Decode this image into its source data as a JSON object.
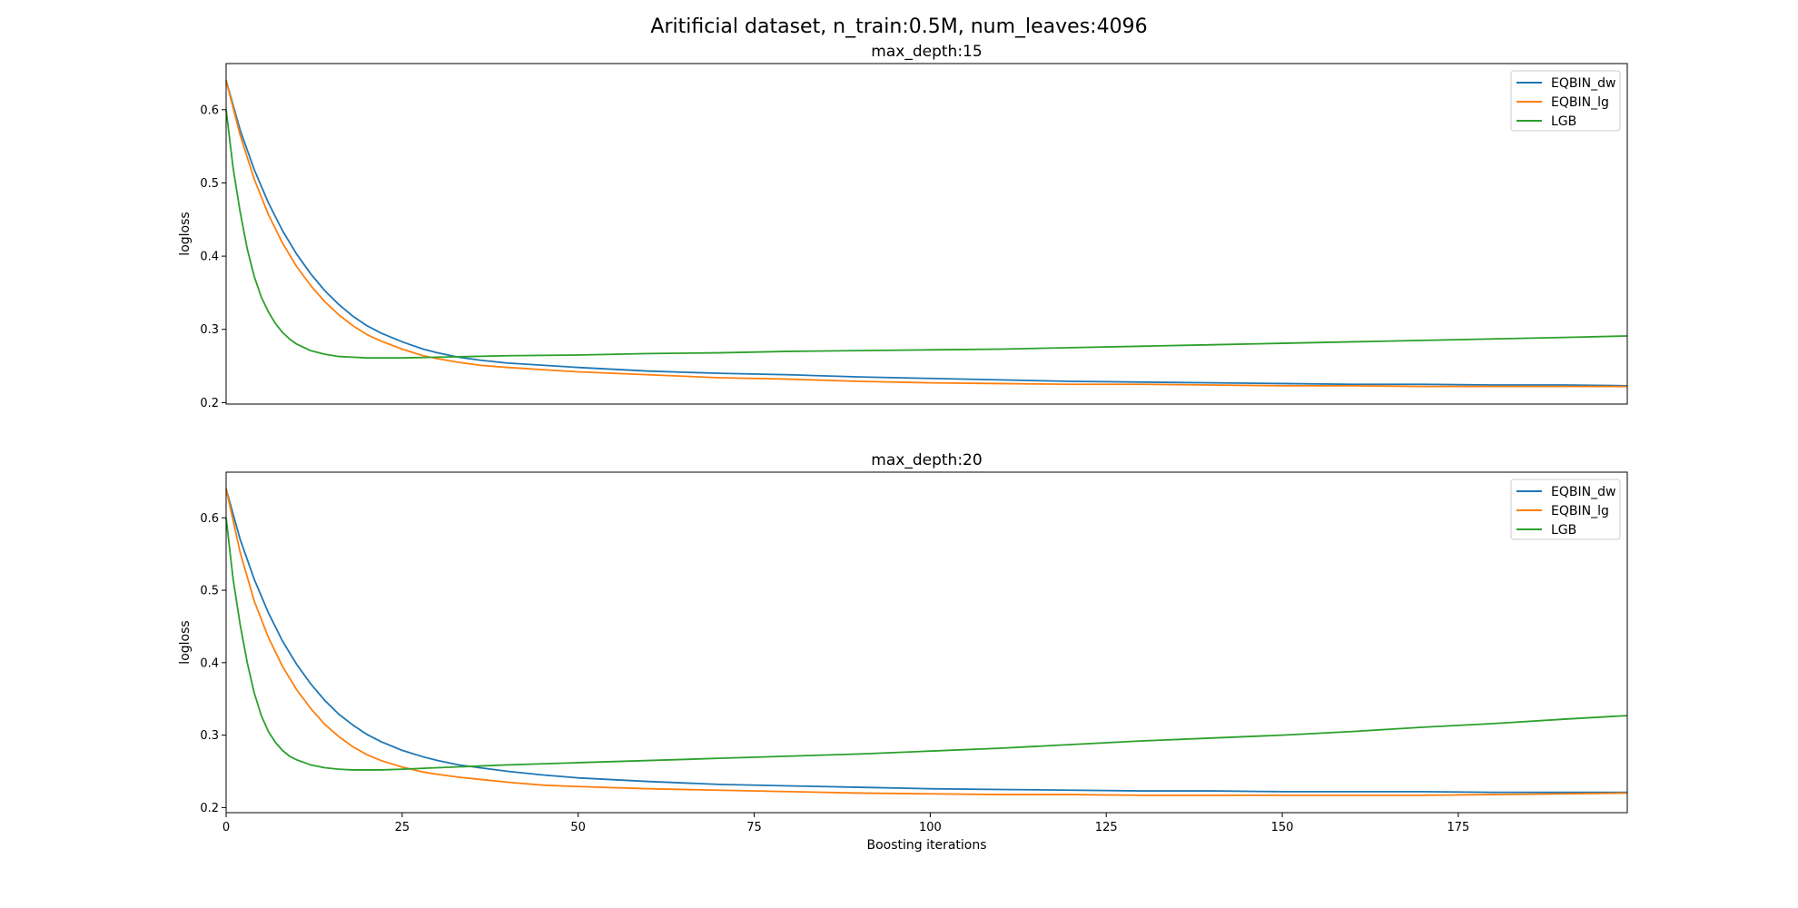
{
  "figure": {
    "suptitle": "Aritificial dataset, n_train:0.5M, num_leaves:4096"
  },
  "chart_data": [
    {
      "type": "line",
      "title": "max_depth:15",
      "xlabel": "",
      "ylabel": "logloss",
      "xlim": [
        0,
        199
      ],
      "ylim": [
        0.198,
        0.663
      ],
      "xticks": [],
      "yticks": [
        0.2,
        0.3,
        0.4,
        0.5,
        0.6
      ],
      "ytick_labels": [
        "0.2",
        "0.3",
        "0.4",
        "0.5",
        "0.6"
      ],
      "grid": false,
      "legend": "top-right",
      "series": [
        {
          "name": "EQBIN_dw",
          "color": "#1f77b4",
          "x": [
            0,
            2,
            4,
            6,
            8,
            10,
            12,
            14,
            16,
            18,
            20,
            22,
            25,
            28,
            30,
            33,
            36,
            40,
            45,
            50,
            60,
            70,
            80,
            90,
            100,
            110,
            120,
            130,
            140,
            150,
            160,
            170,
            180,
            190,
            199
          ],
          "y": [
            0.64,
            0.572,
            0.518,
            0.473,
            0.435,
            0.403,
            0.376,
            0.353,
            0.334,
            0.318,
            0.305,
            0.295,
            0.283,
            0.273,
            0.268,
            0.262,
            0.258,
            0.254,
            0.251,
            0.248,
            0.243,
            0.24,
            0.238,
            0.235,
            0.233,
            0.231,
            0.229,
            0.228,
            0.227,
            0.226,
            0.225,
            0.225,
            0.224,
            0.224,
            0.223
          ]
        },
        {
          "name": "EQBIN_lg",
          "color": "#ff7f0e",
          "x": [
            0,
            2,
            4,
            6,
            8,
            10,
            12,
            14,
            16,
            18,
            20,
            22,
            25,
            28,
            30,
            33,
            36,
            40,
            45,
            50,
            60,
            70,
            80,
            90,
            100,
            110,
            120,
            130,
            140,
            150,
            160,
            170,
            180,
            190,
            199
          ],
          "y": [
            0.64,
            0.565,
            0.505,
            0.457,
            0.418,
            0.386,
            0.36,
            0.338,
            0.32,
            0.305,
            0.293,
            0.284,
            0.273,
            0.264,
            0.26,
            0.255,
            0.251,
            0.248,
            0.245,
            0.242,
            0.238,
            0.234,
            0.232,
            0.229,
            0.227,
            0.226,
            0.225,
            0.225,
            0.224,
            0.223,
            0.223,
            0.222,
            0.222,
            0.222,
            0.222
          ]
        },
        {
          "name": "LGB",
          "color": "#2ca02c",
          "x": [
            0,
            1,
            2,
            3,
            4,
            5,
            6,
            7,
            8,
            9,
            10,
            12,
            14,
            16,
            18,
            20,
            22,
            25,
            30,
            35,
            40,
            50,
            60,
            70,
            80,
            90,
            100,
            110,
            120,
            130,
            140,
            150,
            160,
            170,
            180,
            190,
            199
          ],
          "y": [
            0.6,
            0.52,
            0.46,
            0.41,
            0.372,
            0.344,
            0.324,
            0.308,
            0.296,
            0.287,
            0.28,
            0.271,
            0.266,
            0.263,
            0.262,
            0.261,
            0.261,
            0.261,
            0.262,
            0.263,
            0.264,
            0.265,
            0.267,
            0.268,
            0.27,
            0.271,
            0.272,
            0.273,
            0.275,
            0.277,
            0.279,
            0.281,
            0.283,
            0.285,
            0.287,
            0.289,
            0.291
          ]
        }
      ]
    },
    {
      "type": "line",
      "title": "max_depth:20",
      "xlabel": "Boosting iterations",
      "ylabel": "logloss",
      "xlim": [
        0,
        199
      ],
      "ylim": [
        0.193,
        0.663
      ],
      "xticks": [
        0,
        25,
        50,
        75,
        100,
        125,
        150,
        175
      ],
      "xtick_labels": [
        "0",
        "25",
        "50",
        "75",
        "100",
        "125",
        "150",
        "175"
      ],
      "yticks": [
        0.2,
        0.3,
        0.4,
        0.5,
        0.6
      ],
      "ytick_labels": [
        "0.2",
        "0.3",
        "0.4",
        "0.5",
        "0.6"
      ],
      "grid": false,
      "legend": "top-right",
      "series": [
        {
          "name": "EQBIN_dw",
          "color": "#1f77b4",
          "x": [
            0,
            2,
            4,
            6,
            8,
            10,
            12,
            14,
            16,
            18,
            20,
            22,
            25,
            28,
            30,
            33,
            36,
            40,
            45,
            50,
            60,
            70,
            80,
            90,
            100,
            110,
            120,
            130,
            140,
            150,
            160,
            170,
            180,
            190,
            199
          ],
          "y": [
            0.64,
            0.57,
            0.515,
            0.469,
            0.43,
            0.398,
            0.371,
            0.348,
            0.329,
            0.314,
            0.301,
            0.291,
            0.279,
            0.27,
            0.265,
            0.259,
            0.255,
            0.25,
            0.245,
            0.241,
            0.236,
            0.232,
            0.23,
            0.228,
            0.226,
            0.225,
            0.224,
            0.223,
            0.223,
            0.222,
            0.222,
            0.222,
            0.221,
            0.221,
            0.221
          ]
        },
        {
          "name": "EQBIN_lg",
          "color": "#ff7f0e",
          "x": [
            0,
            2,
            4,
            6,
            8,
            10,
            12,
            14,
            16,
            18,
            20,
            22,
            25,
            28,
            30,
            33,
            36,
            40,
            45,
            50,
            60,
            70,
            80,
            90,
            100,
            110,
            120,
            130,
            140,
            150,
            160,
            170,
            180,
            190,
            199
          ],
          "y": [
            0.64,
            0.552,
            0.485,
            0.435,
            0.395,
            0.363,
            0.337,
            0.315,
            0.298,
            0.284,
            0.273,
            0.265,
            0.256,
            0.249,
            0.246,
            0.242,
            0.239,
            0.235,
            0.231,
            0.229,
            0.226,
            0.224,
            0.222,
            0.22,
            0.219,
            0.218,
            0.218,
            0.217,
            0.217,
            0.217,
            0.217,
            0.217,
            0.218,
            0.219,
            0.22
          ]
        },
        {
          "name": "LGB",
          "color": "#2ca02c",
          "x": [
            0,
            1,
            2,
            3,
            4,
            5,
            6,
            7,
            8,
            9,
            10,
            12,
            14,
            16,
            18,
            20,
            22,
            25,
            30,
            35,
            40,
            50,
            60,
            70,
            80,
            90,
            100,
            110,
            120,
            130,
            140,
            150,
            160,
            170,
            180,
            190,
            199
          ],
          "y": [
            0.6,
            0.515,
            0.452,
            0.4,
            0.358,
            0.327,
            0.305,
            0.29,
            0.279,
            0.271,
            0.266,
            0.259,
            0.255,
            0.253,
            0.252,
            0.252,
            0.252,
            0.253,
            0.255,
            0.257,
            0.259,
            0.262,
            0.265,
            0.268,
            0.271,
            0.274,
            0.278,
            0.282,
            0.287,
            0.292,
            0.296,
            0.3,
            0.305,
            0.311,
            0.316,
            0.322,
            0.327
          ]
        }
      ]
    }
  ]
}
